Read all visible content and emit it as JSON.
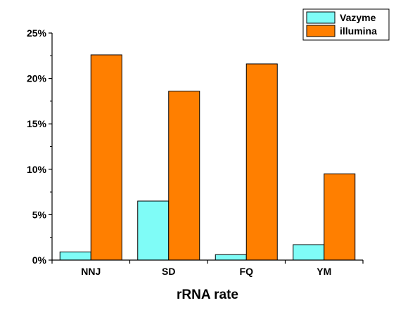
{
  "chart_data": {
    "type": "bar",
    "categories": [
      "NNJ",
      "SD",
      "FQ",
      "YM"
    ],
    "series": [
      {
        "name": "Vazyme",
        "values": [
          0.9,
          6.5,
          0.6,
          1.7
        ],
        "color": "#7ffcf7"
      },
      {
        "name": "illumina",
        "values": [
          22.6,
          18.6,
          21.6,
          9.5
        ],
        "color": "#ff7f00"
      }
    ],
    "title": "",
    "xlabel": "rRNA rate",
    "ylabel": "",
    "ylim": [
      0,
      25
    ],
    "yticks": [
      0,
      5,
      10,
      15,
      20,
      25
    ],
    "ytick_labels": [
      "0%",
      "5%",
      "10%",
      "15%",
      "20%",
      "25%"
    ],
    "grid": false,
    "legend_position": "top-right"
  }
}
